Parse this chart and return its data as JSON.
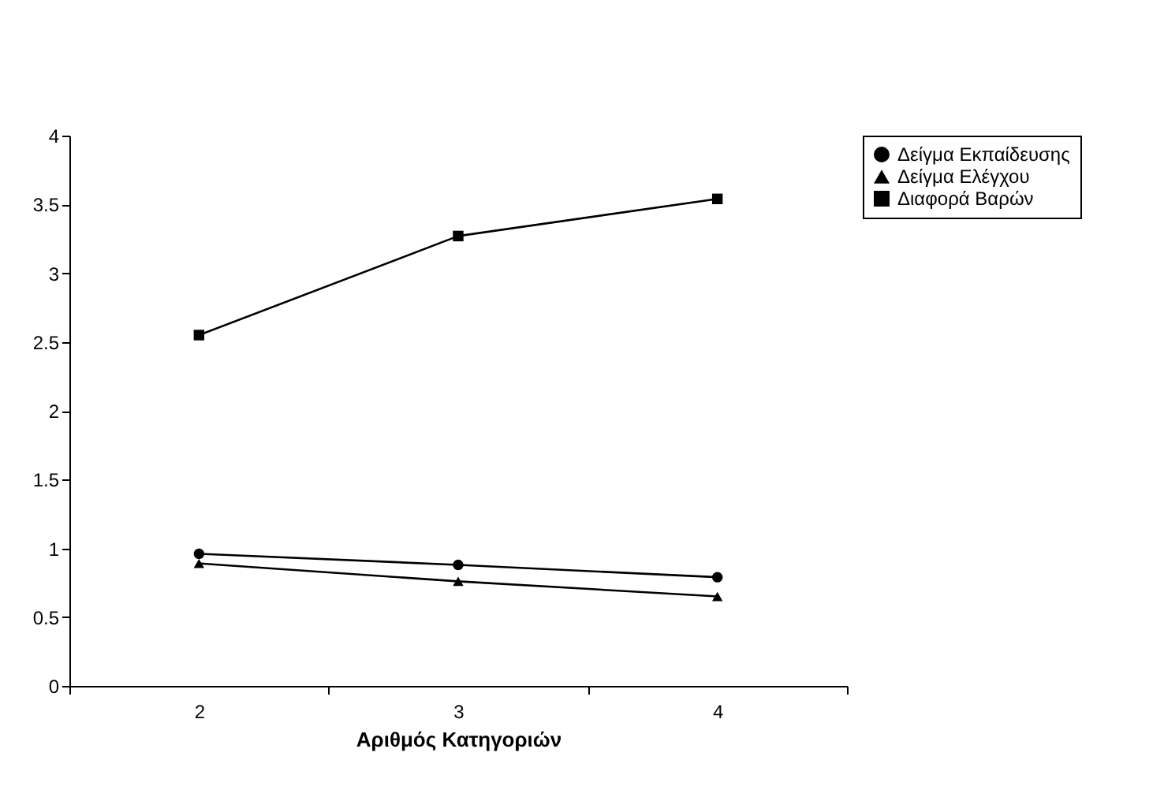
{
  "chart_data": {
    "type": "line",
    "xlabel": "Αριθμός Κατηγοριών",
    "categories": [
      "2",
      "3",
      "4"
    ],
    "series": [
      {
        "name": "Δείγμα Εκπαίδευσης",
        "color": "#000000",
        "marker": "circle",
        "values": [
          0.96,
          0.88,
          0.79
        ]
      },
      {
        "name": "Δείγμα Ελέγχου",
        "color": "#000000",
        "marker": "triangle",
        "values": [
          0.89,
          0.76,
          0.65
        ]
      },
      {
        "name": "Διαφορά Βαρών",
        "color": "#000000",
        "marker": "square",
        "values": [
          2.55,
          3.27,
          3.54
        ]
      }
    ],
    "ylim": [
      0,
      4
    ],
    "yticks": [
      0,
      0.5,
      1,
      1.5,
      2,
      2.5,
      3,
      3.5,
      4
    ],
    "grid": false,
    "legend": "right",
    "line_style": "solid"
  }
}
